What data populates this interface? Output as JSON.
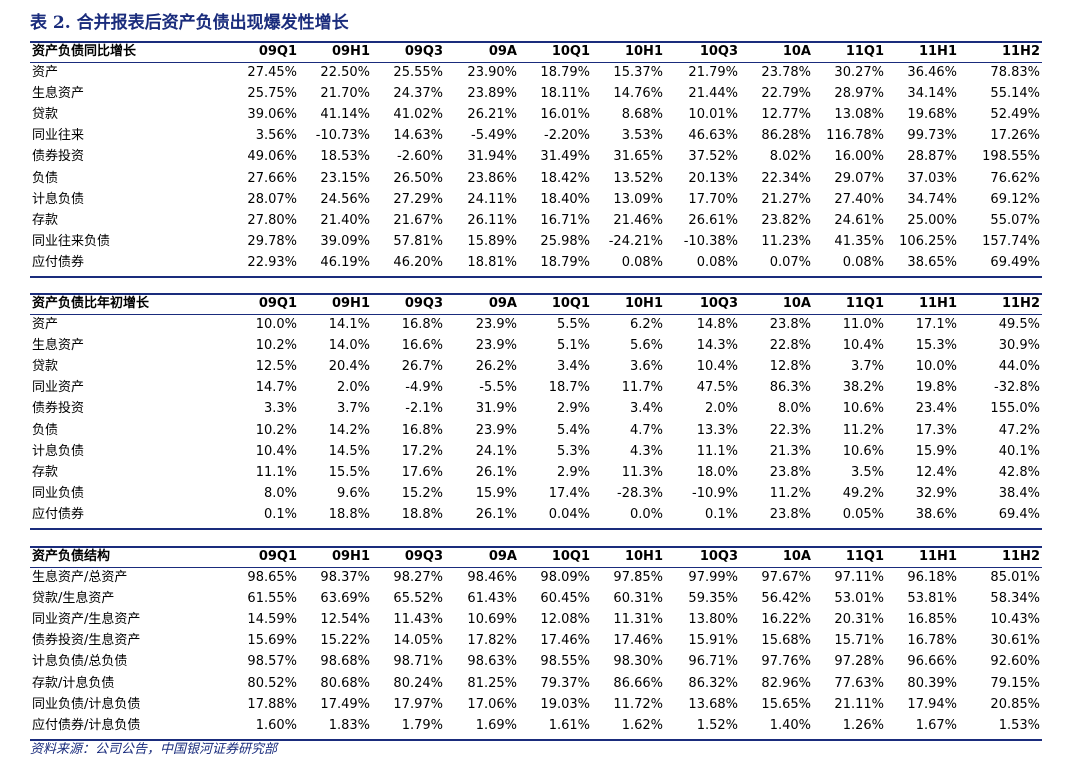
{
  "title": "表 2. 合并报表后资产负债出现爆发性增长",
  "tables": [
    {
      "header": [
        "资产负债同比增长",
        "09Q1",
        "09H1",
        "09Q3",
        "09A",
        "10Q1",
        "10H1",
        "10Q3",
        "10A",
        "11Q1",
        "11H1",
        "11H2"
      ],
      "rows": [
        [
          "资产",
          "27.45%",
          "22.50%",
          "25.55%",
          "23.90%",
          "18.79%",
          "15.37%",
          "21.79%",
          "23.78%",
          "30.27%",
          "36.46%",
          "78.83%"
        ],
        [
          "生息资产",
          "25.75%",
          "21.70%",
          "24.37%",
          "23.89%",
          "18.11%",
          "14.76%",
          "21.44%",
          "22.79%",
          "28.97%",
          "34.14%",
          "55.14%"
        ],
        [
          "贷款",
          "39.06%",
          "41.14%",
          "41.02%",
          "26.21%",
          "16.01%",
          "8.68%",
          "10.01%",
          "12.77%",
          "13.08%",
          "19.68%",
          "52.49%"
        ],
        [
          "同业往来",
          "3.56%",
          "-10.73%",
          "14.63%",
          "-5.49%",
          "-2.20%",
          "3.53%",
          "46.63%",
          "86.28%",
          "116.78%",
          "99.73%",
          "17.26%"
        ],
        [
          "债券投资",
          "49.06%",
          "18.53%",
          "-2.60%",
          "31.94%",
          "31.49%",
          "31.65%",
          "37.52%",
          "8.02%",
          "16.00%",
          "28.87%",
          "198.55%"
        ],
        [
          "负债",
          "27.66%",
          "23.15%",
          "26.50%",
          "23.86%",
          "18.42%",
          "13.52%",
          "20.13%",
          "22.34%",
          "29.07%",
          "37.03%",
          "76.62%"
        ],
        [
          "计息负债",
          "28.07%",
          "24.56%",
          "27.29%",
          "24.11%",
          "18.40%",
          "13.09%",
          "17.70%",
          "21.27%",
          "27.40%",
          "34.74%",
          "69.12%"
        ],
        [
          "存款",
          "27.80%",
          "21.40%",
          "21.67%",
          "26.11%",
          "16.71%",
          "21.46%",
          "26.61%",
          "23.82%",
          "24.61%",
          "25.00%",
          "55.07%"
        ],
        [
          "同业往来负债",
          "29.78%",
          "39.09%",
          "57.81%",
          "15.89%",
          "25.98%",
          "-24.21%",
          "-10.38%",
          "11.23%",
          "41.35%",
          "106.25%",
          "157.74%"
        ],
        [
          "应付债券",
          "22.93%",
          "46.19%",
          "46.20%",
          "18.81%",
          "18.79%",
          "0.08%",
          "0.08%",
          "0.07%",
          "0.08%",
          "38.65%",
          "69.49%"
        ]
      ]
    },
    {
      "header": [
        "资产负债比年初增长",
        "09Q1",
        "09H1",
        "09Q3",
        "09A",
        "10Q1",
        "10H1",
        "10Q3",
        "10A",
        "11Q1",
        "11H1",
        "11H2"
      ],
      "rows": [
        [
          "资产",
          "10.0%",
          "14.1%",
          "16.8%",
          "23.9%",
          "5.5%",
          "6.2%",
          "14.8%",
          "23.8%",
          "11.0%",
          "17.1%",
          "49.5%"
        ],
        [
          "生息资产",
          "10.2%",
          "14.0%",
          "16.6%",
          "23.9%",
          "5.1%",
          "5.6%",
          "14.3%",
          "22.8%",
          "10.4%",
          "15.3%",
          "30.9%"
        ],
        [
          "贷款",
          "12.5%",
          "20.4%",
          "26.7%",
          "26.2%",
          "3.4%",
          "3.6%",
          "10.4%",
          "12.8%",
          "3.7%",
          "10.0%",
          "44.0%"
        ],
        [
          "同业资产",
          "14.7%",
          "2.0%",
          "-4.9%",
          "-5.5%",
          "18.7%",
          "11.7%",
          "47.5%",
          "86.3%",
          "38.2%",
          "19.8%",
          "-32.8%"
        ],
        [
          "债券投资",
          "3.3%",
          "3.7%",
          "-2.1%",
          "31.9%",
          "2.9%",
          "3.4%",
          "2.0%",
          "8.0%",
          "10.6%",
          "23.4%",
          "155.0%"
        ],
        [
          "负债",
          "10.2%",
          "14.2%",
          "16.8%",
          "23.9%",
          "5.4%",
          "4.7%",
          "13.3%",
          "22.3%",
          "11.2%",
          "17.3%",
          "47.2%"
        ],
        [
          "计息负债",
          "10.4%",
          "14.5%",
          "17.2%",
          "24.1%",
          "5.3%",
          "4.3%",
          "11.1%",
          "21.3%",
          "10.6%",
          "15.9%",
          "40.1%"
        ],
        [
          "存款",
          "11.1%",
          "15.5%",
          "17.6%",
          "26.1%",
          "2.9%",
          "11.3%",
          "18.0%",
          "23.8%",
          "3.5%",
          "12.4%",
          "42.8%"
        ],
        [
          "同业负债",
          "8.0%",
          "9.6%",
          "15.2%",
          "15.9%",
          "17.4%",
          "-28.3%",
          "-10.9%",
          "11.2%",
          "49.2%",
          "32.9%",
          "38.4%"
        ],
        [
          "应付债券",
          "0.1%",
          "18.8%",
          "18.8%",
          "26.1%",
          "0.04%",
          "0.0%",
          "0.1%",
          "23.8%",
          "0.05%",
          "38.6%",
          "69.4%"
        ]
      ]
    },
    {
      "header": [
        "资产负债结构",
        "09Q1",
        "09H1",
        "09Q3",
        "09A",
        "10Q1",
        "10H1",
        "10Q3",
        "10A",
        "11Q1",
        "11H1",
        "11H2"
      ],
      "rows": [
        [
          "生息资产/总资产",
          "98.65%",
          "98.37%",
          "98.27%",
          "98.46%",
          "98.09%",
          "97.85%",
          "97.99%",
          "97.67%",
          "97.11%",
          "96.18%",
          "85.01%"
        ],
        [
          "贷款/生息资产",
          "61.55%",
          "63.69%",
          "65.52%",
          "61.43%",
          "60.45%",
          "60.31%",
          "59.35%",
          "56.42%",
          "53.01%",
          "53.81%",
          "58.34%"
        ],
        [
          "同业资产/生息资产",
          "14.59%",
          "12.54%",
          "11.43%",
          "10.69%",
          "12.08%",
          "11.31%",
          "13.80%",
          "16.22%",
          "20.31%",
          "16.85%",
          "10.43%"
        ],
        [
          "债券投资/生息资产",
          "15.69%",
          "15.22%",
          "14.05%",
          "17.82%",
          "17.46%",
          "17.46%",
          "15.91%",
          "15.68%",
          "15.71%",
          "16.78%",
          "30.61%"
        ],
        [
          "计息负债/总负债",
          "98.57%",
          "98.68%",
          "98.71%",
          "98.63%",
          "98.55%",
          "98.30%",
          "96.71%",
          "97.76%",
          "97.28%",
          "96.66%",
          "92.60%"
        ],
        [
          "存款/计息负债",
          "80.52%",
          "80.68%",
          "80.24%",
          "81.25%",
          "79.37%",
          "86.66%",
          "86.32%",
          "82.96%",
          "77.63%",
          "80.39%",
          "79.15%"
        ],
        [
          "同业负债/计息负债",
          "17.88%",
          "17.49%",
          "17.97%",
          "17.06%",
          "19.03%",
          "11.72%",
          "13.68%",
          "15.65%",
          "21.11%",
          "17.94%",
          "20.85%"
        ],
        [
          "应付债券/计息负债",
          "1.60%",
          "1.83%",
          "1.79%",
          "1.69%",
          "1.61%",
          "1.62%",
          "1.52%",
          "1.40%",
          "1.26%",
          "1.67%",
          "1.53%"
        ]
      ]
    }
  ],
  "source": "资料来源：公司公告，中国银河证券研究部"
}
